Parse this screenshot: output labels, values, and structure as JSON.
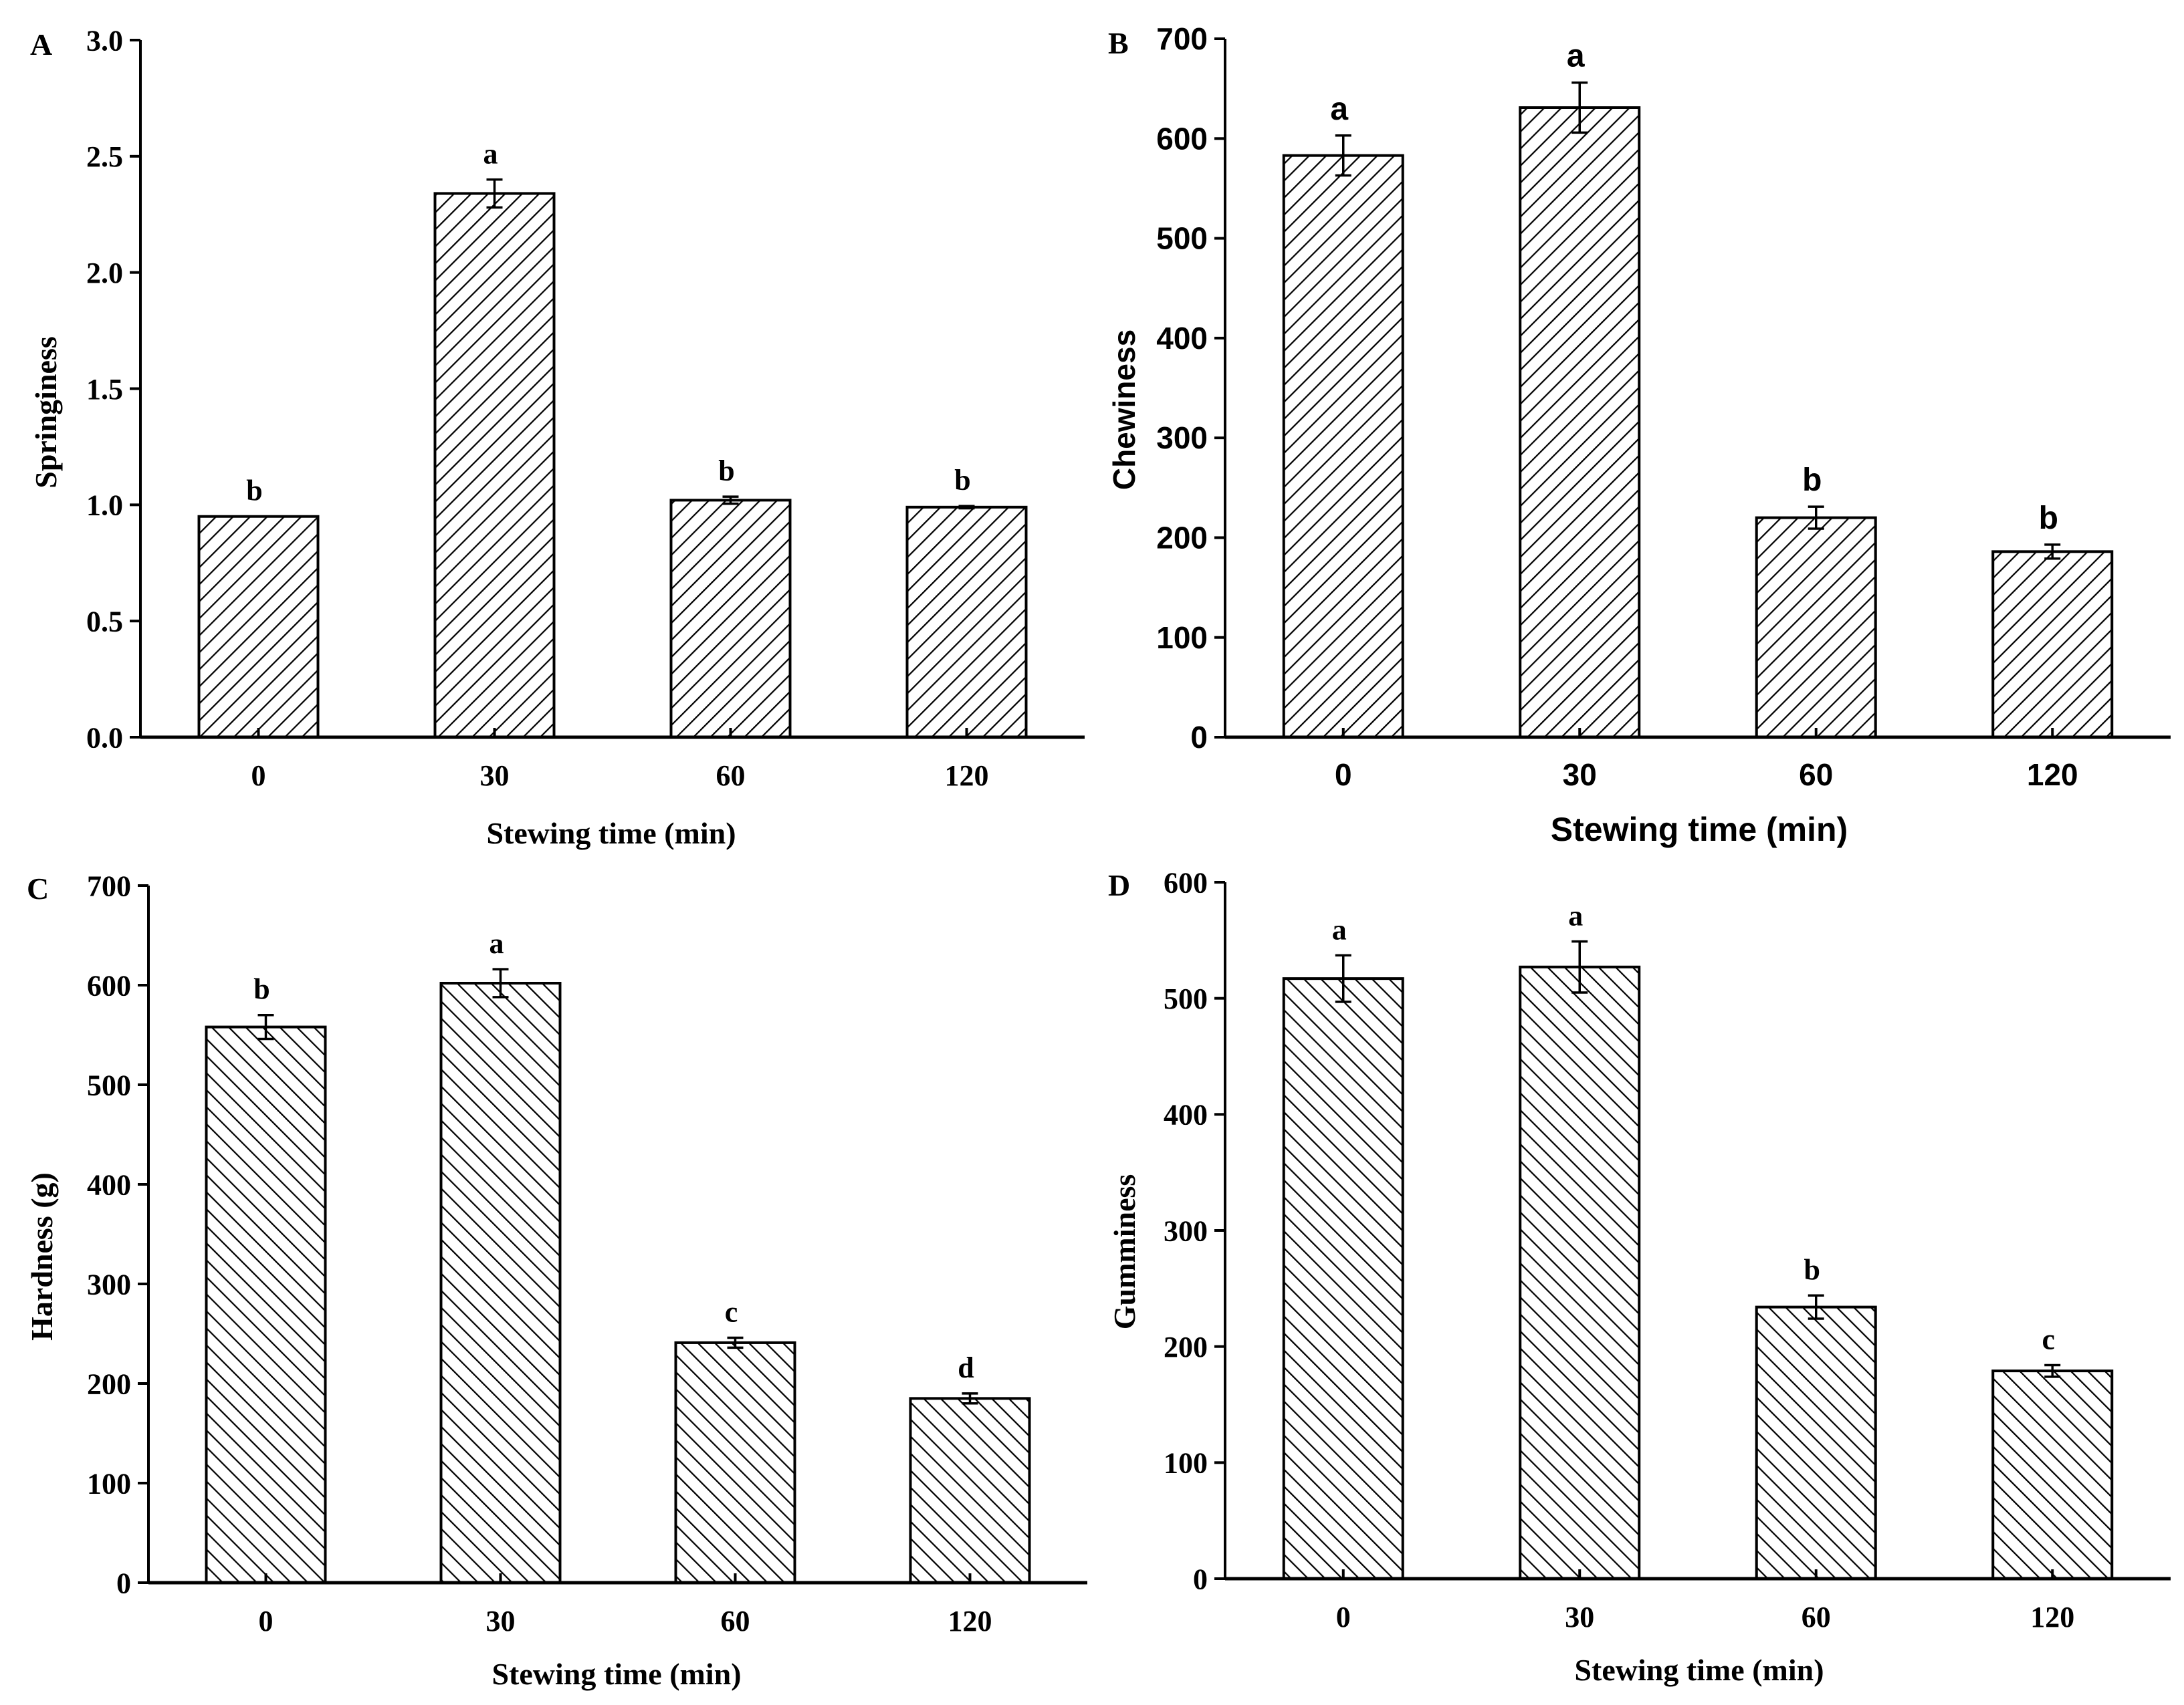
{
  "chart_data": [
    {
      "panel": "A",
      "type": "bar",
      "font": "serif",
      "hatch": "fwd",
      "categories": [
        "0",
        "30",
        "60",
        "120"
      ],
      "values": [
        0.95,
        2.34,
        1.02,
        0.99
      ],
      "errors": [
        0.0,
        0.06,
        0.015,
        0.005
      ],
      "letters": [
        "b",
        "a",
        "b",
        "b"
      ],
      "title": "",
      "xlabel": "Stewing time (min)",
      "ylabel": "Springiness",
      "ylim": [
        0,
        3.0
      ],
      "yticks": [
        0.0,
        0.5,
        1.0,
        1.5,
        2.0,
        2.5,
        3.0
      ],
      "ytick_labels": [
        "0.0",
        "0.5",
        "1.0",
        "1.5",
        "2.0",
        "2.5",
        "3.0"
      ],
      "grid": false
    },
    {
      "panel": "B",
      "type": "bar",
      "font": "sans",
      "hatch": "fwd",
      "categories": [
        "0",
        "30",
        "60",
        "120"
      ],
      "values": [
        583,
        631,
        220,
        186
      ],
      "errors": [
        20,
        25,
        11,
        7
      ],
      "letters": [
        "a",
        "a",
        "b",
        "b"
      ],
      "title": "",
      "xlabel": "Stewing time (min)",
      "ylabel": "Chewiness",
      "ylim": [
        0,
        700
      ],
      "yticks": [
        0,
        100,
        200,
        300,
        400,
        500,
        600,
        700
      ],
      "ytick_labels": [
        "0",
        "100",
        "200",
        "300",
        "400",
        "500",
        "600",
        "700"
      ],
      "grid": false
    },
    {
      "panel": "C",
      "type": "bar",
      "font": "serif",
      "hatch": "back",
      "categories": [
        "0",
        "30",
        "60",
        "120"
      ],
      "values": [
        558,
        602,
        241,
        185
      ],
      "errors": [
        12,
        14,
        5,
        5
      ],
      "letters": [
        "b",
        "a",
        "c",
        "d"
      ],
      "title": "",
      "xlabel": "Stewing time (min)",
      "ylabel": "Hardness (g)",
      "ylim": [
        0,
        700
      ],
      "yticks": [
        0,
        100,
        200,
        300,
        400,
        500,
        600,
        700
      ],
      "ytick_labels": [
        "0",
        "100",
        "200",
        "300",
        "400",
        "500",
        "600",
        "700"
      ],
      "grid": false
    },
    {
      "panel": "D",
      "type": "bar",
      "font": "serif",
      "hatch": "back",
      "categories": [
        "0",
        "30",
        "60",
        "120"
      ],
      "values": [
        517,
        527,
        234,
        179
      ],
      "errors": [
        20,
        22,
        10,
        5
      ],
      "letters": [
        "a",
        "a",
        "b",
        "c"
      ],
      "title": "",
      "xlabel": "Stewing time (min)",
      "ylabel": "Gumminess",
      "ylim": [
        0,
        600
      ],
      "yticks": [
        0,
        100,
        200,
        300,
        400,
        500,
        600
      ],
      "ytick_labels": [
        "0",
        "100",
        "200",
        "300",
        "400",
        "500",
        "600"
      ],
      "grid": false
    }
  ]
}
